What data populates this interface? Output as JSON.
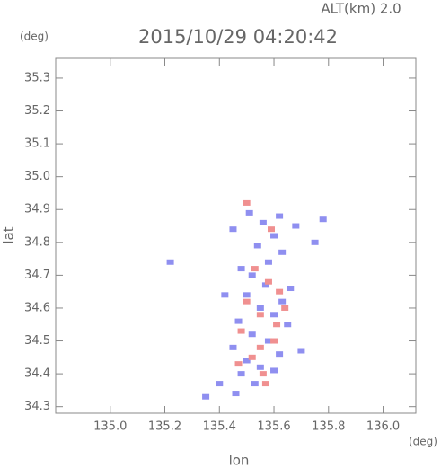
{
  "chart_data": {
    "type": "scatter",
    "title": "2015/10/29 04:20:42",
    "subtitle": "ALT(km) 2.0",
    "y_unit": "(deg)",
    "x_unit": "(deg)",
    "xlabel": "lon",
    "ylabel": "lat",
    "xlim": [
      134.8,
      136.12
    ],
    "ylim": [
      34.28,
      35.36
    ],
    "xticks": [
      {
        "value": 135.0,
        "label": "135.0"
      },
      135.2,
      135.4,
      135.6,
      135.8,
      {
        "value": 136.0,
        "label": "136.0"
      }
    ],
    "yticks": [
      34.3,
      34.4,
      34.5,
      34.6,
      34.7,
      34.8,
      34.9,
      {
        "value": 35.0,
        "label": "35.0"
      },
      35.1,
      35.2,
      35.3
    ],
    "series": [
      {
        "color": "#8f8ff0",
        "x": [
          135.53,
          135.48,
          135.5,
          135.55,
          135.45,
          135.52,
          135.58,
          135.62,
          135.47,
          135.55,
          135.6,
          135.65,
          135.5,
          135.57,
          135.63,
          135.52,
          135.48,
          135.58,
          135.66,
          135.54,
          135.6,
          135.45,
          135.56,
          135.62,
          135.51,
          135.4,
          135.35,
          135.22,
          135.46,
          135.6,
          135.7,
          135.78,
          135.75,
          135.42,
          135.63,
          135.68
        ],
        "y": [
          34.37,
          34.4,
          34.44,
          34.42,
          34.48,
          34.52,
          34.5,
          34.46,
          34.56,
          34.6,
          34.58,
          34.55,
          34.64,
          34.67,
          34.62,
          34.7,
          34.72,
          34.74,
          34.66,
          34.79,
          34.82,
          34.84,
          34.86,
          34.88,
          34.89,
          34.37,
          34.33,
          34.74,
          34.34,
          34.41,
          34.47,
          34.87,
          34.8,
          34.64,
          34.77,
          34.85
        ]
      },
      {
        "color": "#f09090",
        "x": [
          135.57,
          135.52,
          135.6,
          135.48,
          135.55,
          135.62,
          135.5,
          135.58,
          135.53,
          135.64,
          135.47,
          135.56,
          135.61,
          135.5,
          135.59,
          135.55
        ],
        "y": [
          34.37,
          34.45,
          34.5,
          34.53,
          34.58,
          34.65,
          34.62,
          34.68,
          34.72,
          34.6,
          34.43,
          34.4,
          34.55,
          34.92,
          34.84,
          34.48
        ]
      }
    ]
  }
}
